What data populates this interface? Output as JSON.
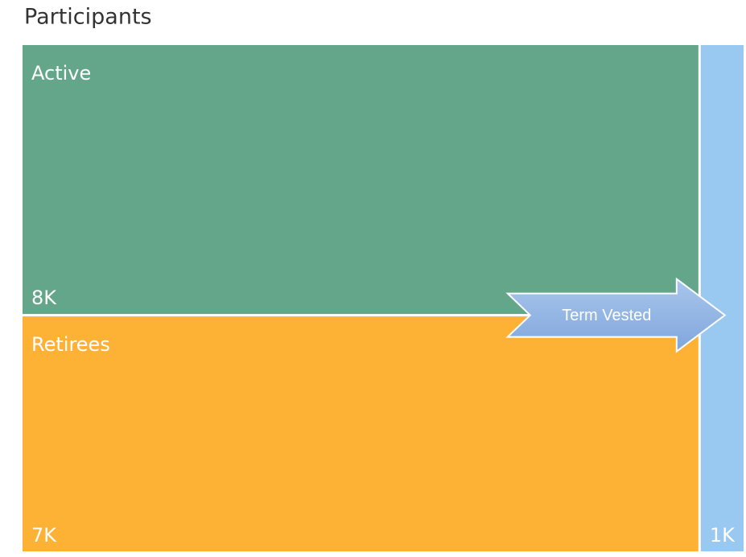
{
  "chart_data": {
    "type": "treemap",
    "title": "Participants",
    "categories": [
      "Active",
      "Retirees",
      "Term Vested"
    ],
    "values": [
      8000,
      7000,
      1000
    ],
    "value_labels": [
      "8K",
      "7K",
      "1K"
    ],
    "colors": [
      "#64a68a",
      "#fdb135",
      "#99c9f0"
    ]
  }
}
